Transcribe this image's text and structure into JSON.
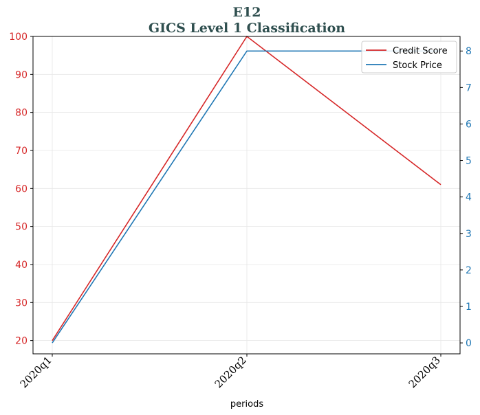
{
  "chart_data": {
    "type": "line",
    "title": "E12",
    "subtitle": "GICS Level 1 Classification",
    "xlabel": "periods",
    "categories": [
      "2020q1",
      "2020q2",
      "2020q3"
    ],
    "series": [
      {
        "name": "Credit Score",
        "axis": "left",
        "color": "#d62728",
        "values": [
          20,
          100,
          61
        ]
      },
      {
        "name": "Stock Price",
        "axis": "right",
        "color": "#1f77b4",
        "values": [
          0,
          8,
          8
        ]
      }
    ],
    "ylim_left": [
      16.5,
      100
    ],
    "yticks_left": [
      20,
      30,
      40,
      50,
      60,
      70,
      80,
      90,
      100
    ],
    "ylim_right": [
      -0.3,
      8.4
    ],
    "yticks_right": [
      0,
      1,
      2,
      3,
      4,
      5,
      6,
      7,
      8
    ],
    "grid": true,
    "legend_position": "top-right"
  }
}
